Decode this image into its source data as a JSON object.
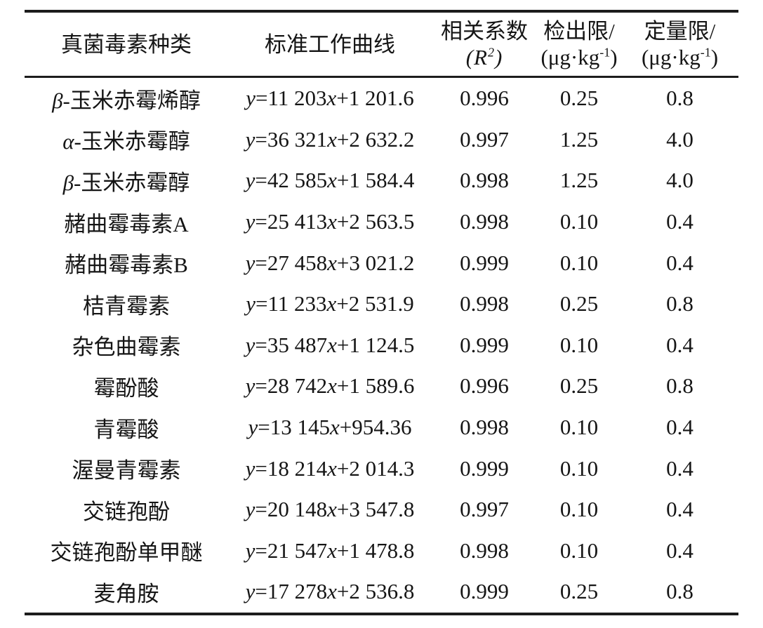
{
  "table": {
    "header": {
      "col1": "真菌毒素种类",
      "col2": "标准工作曲线",
      "col3_line1": "相关系数",
      "col3_open": "(",
      "col3_symbol": "R",
      "col3_sup": "2",
      "col3_close": ")",
      "col4_line1": "检出限/",
      "col4_open": "(",
      "col4_unit": "μg·kg",
      "col4_sup": "-1",
      "col4_close": ")",
      "col5_line1": "定量限/",
      "col5_open": "(",
      "col5_unit": "μg·kg",
      "col5_sup": "-1",
      "col5_close": ")"
    },
    "formula": {
      "y": "y",
      "equals": "=",
      "x": "x"
    },
    "rows": [
      {
        "prefix": "β-",
        "name": "玉米赤霉烯醇",
        "slope": "11 203",
        "intercept": "+1 201.6",
        "r2": "0.996",
        "lod": "0.25",
        "loq": "0.8"
      },
      {
        "prefix": "α-",
        "name": "玉米赤霉醇",
        "slope": "36 321",
        "intercept": "+2 632.2",
        "r2": "0.997",
        "lod": "1.25",
        "loq": "4.0"
      },
      {
        "prefix": "β-",
        "name": "玉米赤霉醇",
        "slope": "42 585",
        "intercept": "+1 584.4",
        "r2": "0.998",
        "lod": "1.25",
        "loq": "4.0"
      },
      {
        "prefix": "",
        "name": "赭曲霉毒素A",
        "slope": "25 413",
        "intercept": "+2 563.5",
        "r2": "0.998",
        "lod": "0.10",
        "loq": "0.4"
      },
      {
        "prefix": "",
        "name": "赭曲霉毒素B",
        "slope": "27 458",
        "intercept": "+3 021.2",
        "r2": "0.999",
        "lod": "0.10",
        "loq": "0.4"
      },
      {
        "prefix": "",
        "name": "桔青霉素",
        "slope": "11 233",
        "intercept": "+2 531.9",
        "r2": "0.998",
        "lod": "0.25",
        "loq": "0.8"
      },
      {
        "prefix": "",
        "name": "杂色曲霉素",
        "slope": "35 487",
        "intercept": "+1 124.5",
        "r2": "0.999",
        "lod": "0.10",
        "loq": "0.4"
      },
      {
        "prefix": "",
        "name": "霉酚酸",
        "slope": "28 742",
        "intercept": "+1 589.6",
        "r2": "0.996",
        "lod": "0.25",
        "loq": "0.8"
      },
      {
        "prefix": "",
        "name": "青霉酸",
        "slope": "13 145",
        "intercept": "+954.36",
        "r2": "0.998",
        "lod": "0.10",
        "loq": "0.4"
      },
      {
        "prefix": "",
        "name": "渥曼青霉素",
        "slope": "18 214",
        "intercept": "+2 014.3",
        "r2": "0.999",
        "lod": "0.10",
        "loq": "0.4"
      },
      {
        "prefix": "",
        "name": "交链孢酚",
        "slope": "20 148",
        "intercept": "+3 547.8",
        "r2": "0.997",
        "lod": "0.10",
        "loq": "0.4"
      },
      {
        "prefix": "",
        "name": "交链孢酚单甲醚",
        "slope": "21 547",
        "intercept": "+1 478.8",
        "r2": "0.998",
        "lod": "0.10",
        "loq": "0.4"
      },
      {
        "prefix": "",
        "name": "麦角胺",
        "slope": "17 278",
        "intercept": "+2 536.8",
        "r2": "0.999",
        "lod": "0.25",
        "loq": "0.8"
      }
    ]
  }
}
